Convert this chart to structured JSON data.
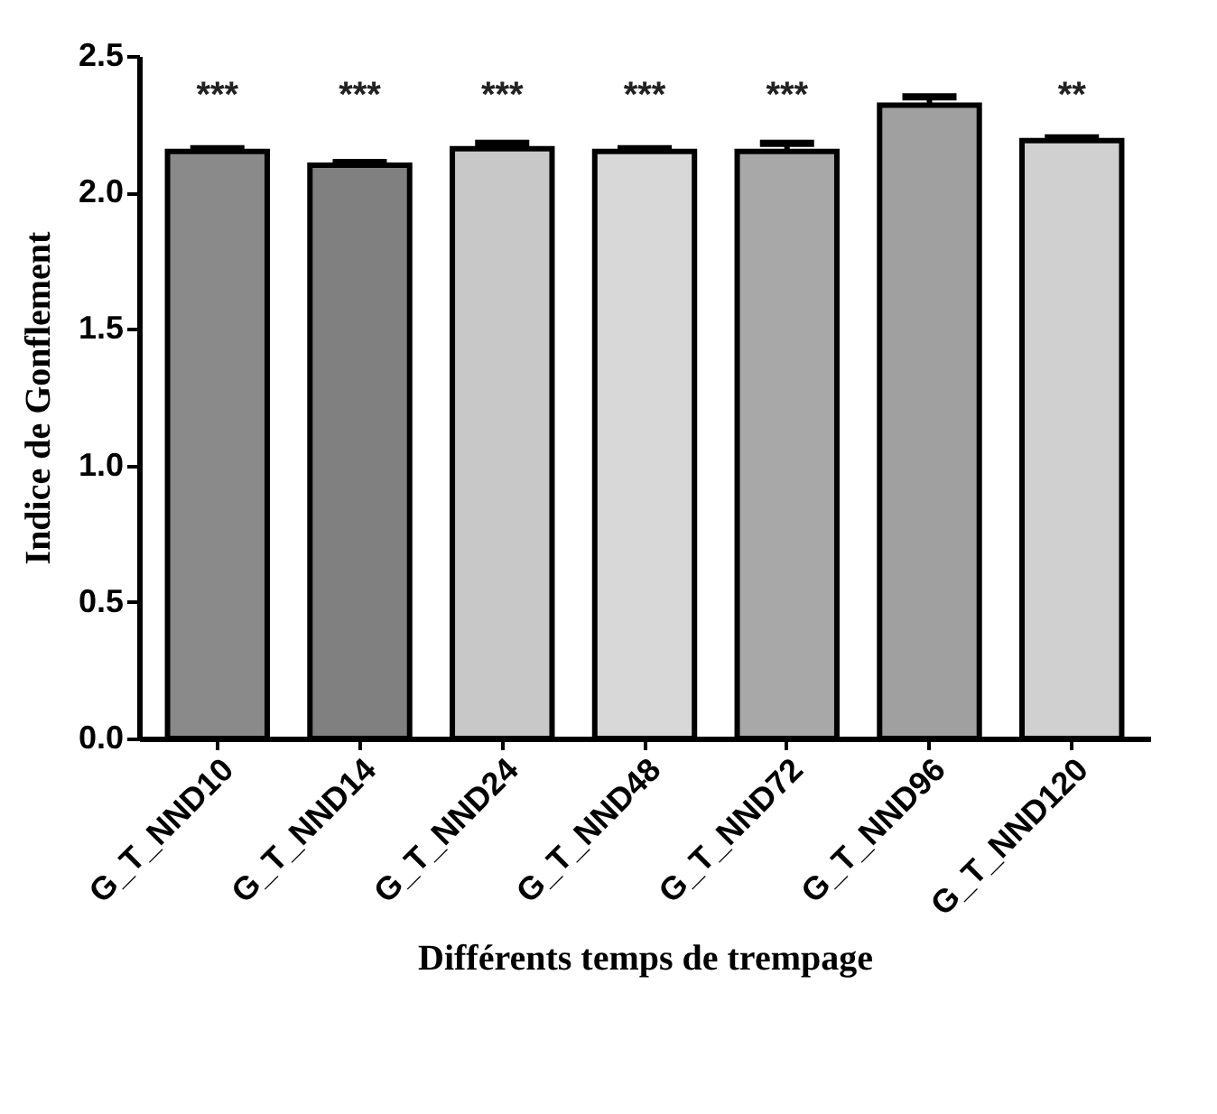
{
  "chart_data": {
    "type": "bar",
    "xlabel": "Différents temps de trempage",
    "ylabel": "Indice de Gonflement",
    "categories": [
      "G_T_NND10",
      "G_T_NND14",
      "G_T_NND24",
      "G_T_NND48",
      "G_T_NND72",
      "G_T_NND96",
      "G_T_NND120"
    ],
    "values": [
      2.15,
      2.1,
      2.16,
      2.15,
      2.15,
      2.32,
      2.19
    ],
    "errors": [
      0.01,
      0.01,
      0.02,
      0.01,
      0.03,
      0.03,
      0.01
    ],
    "colors": [
      "#8a8a8a",
      "#808080",
      "#c8c8c8",
      "#d8d8d8",
      "#a8a8a8",
      "#a0a0a0",
      "#d0d0d0"
    ],
    "ylim": [
      0,
      2.5
    ],
    "yticks": [
      {
        "value": 0,
        "label": "0.0"
      },
      0.5,
      {
        "value": 1,
        "label": "1.0"
      },
      1.5,
      {
        "value": 2,
        "label": "2.0"
      },
      2.5
    ],
    "grid": false,
    "value_labels": [
      "***",
      "***",
      "***",
      "***",
      "***",
      null,
      "**"
    ]
  }
}
